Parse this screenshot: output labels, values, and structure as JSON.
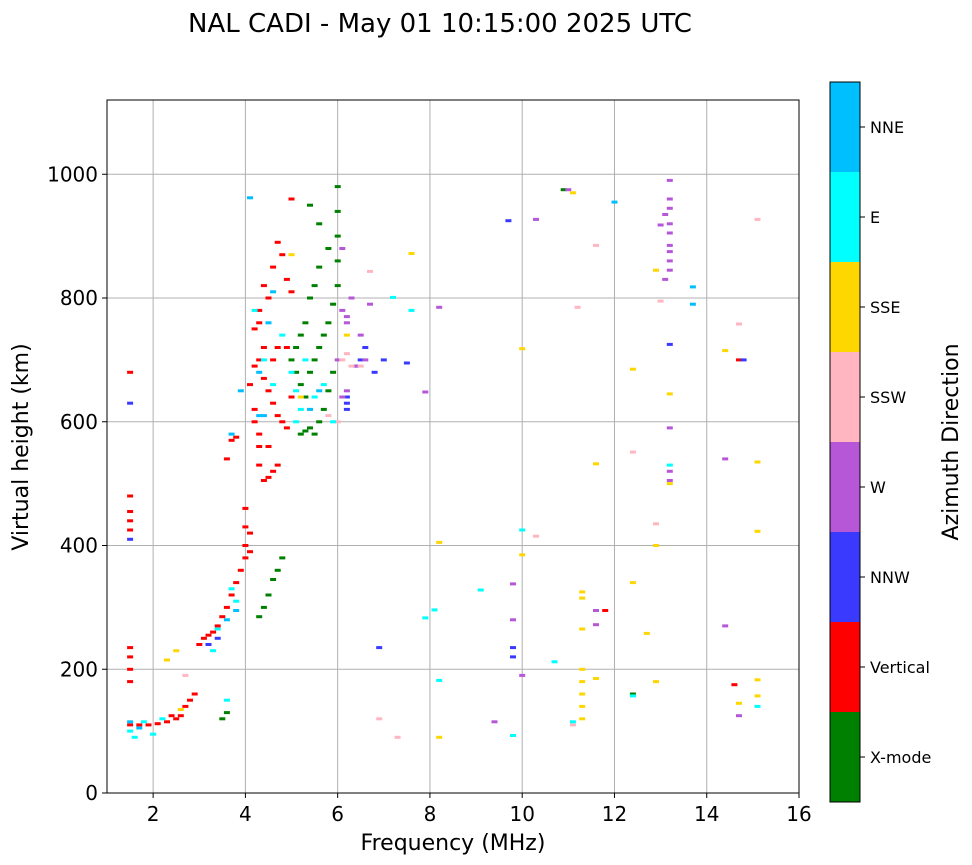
{
  "chart_data": {
    "type": "scatter",
    "title": "NAL CADI - May 01 10:15:00 2025 UTC",
    "xlabel": "Frequency (MHz)",
    "ylabel": "Virtual height (km)",
    "xlim": [
      1,
      16
    ],
    "ylim": [
      0,
      1120
    ],
    "xticks": [
      2,
      4,
      6,
      8,
      10,
      12,
      14,
      16
    ],
    "yticks": [
      0,
      200,
      400,
      600,
      800,
      1000
    ],
    "grid": true,
    "colorbar": {
      "label": "Azimuth Direction",
      "categories": [
        {
          "name": "X-mode",
          "color": "#008000"
        },
        {
          "name": "Vertical",
          "color": "#ff0000"
        },
        {
          "name": "NNW",
          "color": "#3a3aff"
        },
        {
          "name": "W",
          "color": "#b657d8"
        },
        {
          "name": "SSW",
          "color": "#ffb6c1"
        },
        {
          "name": "SSE",
          "color": "#ffd700"
        },
        {
          "name": "E",
          "color": "#00ffff"
        },
        {
          "name": "NNE",
          "color": "#00bfff"
        }
      ]
    },
    "series": [
      {
        "name": "Vertical",
        "points": [
          [
            1.5,
            680
          ],
          [
            1.5,
            480
          ],
          [
            1.5,
            455
          ],
          [
            1.5,
            440
          ],
          [
            1.5,
            425
          ],
          [
            1.5,
            235
          ],
          [
            1.5,
            220
          ],
          [
            1.5,
            200
          ],
          [
            1.5,
            180
          ],
          [
            1.5,
            110
          ],
          [
            1.7,
            110
          ],
          [
            1.9,
            110
          ],
          [
            2.1,
            112
          ],
          [
            2.3,
            115
          ],
          [
            2.4,
            125
          ],
          [
            2.5,
            120
          ],
          [
            2.6,
            125
          ],
          [
            2.7,
            140
          ],
          [
            2.8,
            150
          ],
          [
            2.9,
            160
          ],
          [
            3.0,
            240
          ],
          [
            3.1,
            250
          ],
          [
            3.2,
            255
          ],
          [
            3.3,
            260
          ],
          [
            3.4,
            270
          ],
          [
            3.5,
            285
          ],
          [
            3.6,
            300
          ],
          [
            3.7,
            320
          ],
          [
            3.8,
            340
          ],
          [
            3.9,
            360
          ],
          [
            4.0,
            380
          ],
          [
            4.0,
            400
          ],
          [
            4.0,
            430
          ],
          [
            4.0,
            460
          ],
          [
            4.1,
            420
          ],
          [
            4.1,
            390
          ],
          [
            3.6,
            540
          ],
          [
            3.7,
            570
          ],
          [
            3.8,
            575
          ],
          [
            4.2,
            620
          ],
          [
            4.2,
            600
          ],
          [
            4.3,
            580
          ],
          [
            4.3,
            560
          ],
          [
            4.3,
            530
          ],
          [
            4.4,
            505
          ],
          [
            4.5,
            510
          ],
          [
            4.6,
            520
          ],
          [
            4.7,
            530
          ],
          [
            4.5,
            560
          ],
          [
            4.1,
            660
          ],
          [
            4.2,
            690
          ],
          [
            4.3,
            700
          ],
          [
            4.4,
            670
          ],
          [
            4.5,
            650
          ],
          [
            4.6,
            630
          ],
          [
            4.7,
            610
          ],
          [
            4.8,
            600
          ],
          [
            4.9,
            590
          ],
          [
            5.0,
            640
          ],
          [
            4.2,
            750
          ],
          [
            4.3,
            780
          ],
          [
            4.4,
            820
          ],
          [
            4.6,
            850
          ],
          [
            4.8,
            870
          ],
          [
            4.9,
            830
          ],
          [
            5.0,
            810
          ],
          [
            4.7,
            890
          ],
          [
            4.5,
            800
          ],
          [
            4.3,
            760
          ],
          [
            5.0,
            960
          ],
          [
            11.8,
            295
          ],
          [
            14.7,
            700
          ],
          [
            14.6,
            175
          ],
          [
            4.9,
            720
          ],
          [
            4.7,
            720
          ],
          [
            4.6,
            700
          ],
          [
            4.4,
            720
          ]
        ]
      },
      {
        "name": "X-mode",
        "points": [
          [
            3.6,
            130
          ],
          [
            3.5,
            120
          ],
          [
            4.3,
            285
          ],
          [
            4.4,
            300
          ],
          [
            4.5,
            320
          ],
          [
            4.6,
            345
          ],
          [
            4.7,
            360
          ],
          [
            4.8,
            380
          ],
          [
            5.2,
            580
          ],
          [
            5.3,
            585
          ],
          [
            5.4,
            590
          ],
          [
            5.5,
            580
          ],
          [
            5.6,
            600
          ],
          [
            5.7,
            620
          ],
          [
            5.8,
            650
          ],
          [
            5.9,
            680
          ],
          [
            5.2,
            660
          ],
          [
            5.4,
            680
          ],
          [
            5.5,
            700
          ],
          [
            5.6,
            720
          ],
          [
            5.7,
            740
          ],
          [
            5.8,
            760
          ],
          [
            5.9,
            790
          ],
          [
            6.0,
            820
          ],
          [
            6.0,
            860
          ],
          [
            6.0,
            900
          ],
          [
            6.0,
            940
          ],
          [
            6.0,
            980
          ],
          [
            5.8,
            880
          ],
          [
            5.6,
            850
          ],
          [
            5.5,
            820
          ],
          [
            5.4,
            800
          ],
          [
            5.3,
            760
          ],
          [
            5.2,
            740
          ],
          [
            5.1,
            720
          ],
          [
            5.0,
            700
          ],
          [
            5.6,
            920
          ],
          [
            5.4,
            950
          ],
          [
            5.1,
            680
          ],
          [
            5.3,
            640
          ],
          [
            12.4,
            160
          ],
          [
            10.9,
            975
          ]
        ]
      },
      {
        "name": "NNW",
        "points": [
          [
            1.5,
            410
          ],
          [
            1.5,
            630
          ],
          [
            6.2,
            640
          ],
          [
            6.2,
            630
          ],
          [
            6.4,
            690
          ],
          [
            6.5,
            700
          ],
          [
            6.6,
            720
          ],
          [
            6.8,
            680
          ],
          [
            7.0,
            700
          ],
          [
            7.5,
            695
          ],
          [
            9.8,
            235
          ],
          [
            9.8,
            220
          ],
          [
            6.9,
            235
          ],
          [
            13.2,
            725
          ],
          [
            9.7,
            925
          ],
          [
            6.2,
            620
          ],
          [
            3.4,
            250
          ],
          [
            3.2,
            240
          ],
          [
            14.8,
            700
          ]
        ]
      },
      {
        "name": "W",
        "points": [
          [
            6.1,
            780
          ],
          [
            6.2,
            770
          ],
          [
            6.2,
            760
          ],
          [
            6.3,
            800
          ],
          [
            6.1,
            880
          ],
          [
            6.5,
            740
          ],
          [
            6.7,
            790
          ],
          [
            6.4,
            690
          ],
          [
            6.1,
            640
          ],
          [
            6.2,
            650
          ],
          [
            8.2,
            785
          ],
          [
            7.9,
            648
          ],
          [
            9.8,
            338
          ],
          [
            9.8,
            280
          ],
          [
            10.0,
            190
          ],
          [
            9.4,
            115
          ],
          [
            10.3,
            927
          ],
          [
            11.6,
            295
          ],
          [
            11.6,
            272
          ],
          [
            13.2,
            990
          ],
          [
            13.2,
            960
          ],
          [
            13.2,
            945
          ],
          [
            13.1,
            935
          ],
          [
            13.2,
            920
          ],
          [
            13.0,
            918
          ],
          [
            13.2,
            905
          ],
          [
            13.2,
            885
          ],
          [
            13.2,
            875
          ],
          [
            13.2,
            860
          ],
          [
            13.2,
            845
          ],
          [
            13.1,
            830
          ],
          [
            13.2,
            590
          ],
          [
            13.2,
            520
          ],
          [
            13.2,
            505
          ],
          [
            14.4,
            540
          ],
          [
            14.4,
            270
          ],
          [
            14.7,
            125
          ],
          [
            11.0,
            975
          ],
          [
            6.0,
            700
          ],
          [
            6.6,
            700
          ]
        ]
      },
      {
        "name": "SSW",
        "points": [
          [
            6.1,
            700
          ],
          [
            6.2,
            710
          ],
          [
            6.3,
            690
          ],
          [
            6.5,
            690
          ],
          [
            6.7,
            843
          ],
          [
            6.9,
            120
          ],
          [
            7.3,
            90
          ],
          [
            10.3,
            415
          ],
          [
            11.2,
            785
          ],
          [
            11.6,
            885
          ],
          [
            12.4,
            551
          ],
          [
            12.9,
            435
          ],
          [
            13.0,
            795
          ],
          [
            14.7,
            758
          ],
          [
            15.1,
            927
          ],
          [
            11.1,
            110
          ],
          [
            2.7,
            190
          ],
          [
            5.8,
            610
          ],
          [
            6.0,
            600
          ]
        ]
      },
      {
        "name": "SSE",
        "points": [
          [
            2.3,
            215
          ],
          [
            2.5,
            230
          ],
          [
            5.0,
            870
          ],
          [
            5.2,
            640
          ],
          [
            6.2,
            740
          ],
          [
            7.6,
            872
          ],
          [
            8.2,
            405
          ],
          [
            8.2,
            90
          ],
          [
            10.0,
            718
          ],
          [
            10.0,
            385
          ],
          [
            11.3,
            325
          ],
          [
            11.3,
            315
          ],
          [
            11.3,
            265
          ],
          [
            11.3,
            200
          ],
          [
            11.3,
            180
          ],
          [
            11.3,
            160
          ],
          [
            11.3,
            140
          ],
          [
            11.3,
            120
          ],
          [
            11.6,
            532
          ],
          [
            11.6,
            185
          ],
          [
            12.4,
            685
          ],
          [
            12.4,
            340
          ],
          [
            12.7,
            258
          ],
          [
            12.9,
            845
          ],
          [
            12.9,
            400
          ],
          [
            12.9,
            180
          ],
          [
            13.2,
            645
          ],
          [
            13.2,
            500
          ],
          [
            14.4,
            715
          ],
          [
            14.7,
            145
          ],
          [
            15.1,
            535
          ],
          [
            15.1,
            423
          ],
          [
            15.1,
            183
          ],
          [
            15.1,
            157
          ],
          [
            11.1,
            970
          ],
          [
            2.6,
            135
          ]
        ]
      },
      {
        "name": "E",
        "points": [
          [
            1.5,
            100
          ],
          [
            1.6,
            90
          ],
          [
            1.8,
            115
          ],
          [
            2.0,
            95
          ],
          [
            2.2,
            120
          ],
          [
            3.3,
            230
          ],
          [
            3.4,
            265
          ],
          [
            3.6,
            150
          ],
          [
            3.7,
            330
          ],
          [
            3.8,
            310
          ],
          [
            4.2,
            780
          ],
          [
            4.4,
            700
          ],
          [
            4.6,
            660
          ],
          [
            4.8,
            740
          ],
          [
            5.0,
            680
          ],
          [
            5.1,
            650
          ],
          [
            5.2,
            620
          ],
          [
            5.3,
            700
          ],
          [
            5.1,
            600
          ],
          [
            7.2,
            801
          ],
          [
            7.6,
            780
          ],
          [
            8.1,
            296
          ],
          [
            8.2,
            182
          ],
          [
            7.9,
            283
          ],
          [
            9.1,
            328
          ],
          [
            9.8,
            93
          ],
          [
            10.0,
            425
          ],
          [
            10.7,
            212
          ],
          [
            11.1,
            115
          ],
          [
            12.4,
            157
          ],
          [
            13.2,
            530
          ],
          [
            15.1,
            140
          ],
          [
            5.7,
            660
          ],
          [
            5.5,
            640
          ],
          [
            5.9,
            600
          ]
        ]
      },
      {
        "name": "NNE",
        "points": [
          [
            1.5,
            115
          ],
          [
            1.7,
            105
          ],
          [
            3.7,
            580
          ],
          [
            3.9,
            650
          ],
          [
            4.1,
            962
          ],
          [
            4.3,
            610
          ],
          [
            4.3,
            680
          ],
          [
            4.4,
            610
          ],
          [
            4.5,
            760
          ],
          [
            4.6,
            810
          ],
          [
            13.7,
            818
          ],
          [
            13.7,
            790
          ],
          [
            12.0,
            955
          ],
          [
            3.8,
            295
          ],
          [
            3.6,
            280
          ],
          [
            5.4,
            620
          ],
          [
            5.6,
            650
          ]
        ]
      }
    ]
  }
}
